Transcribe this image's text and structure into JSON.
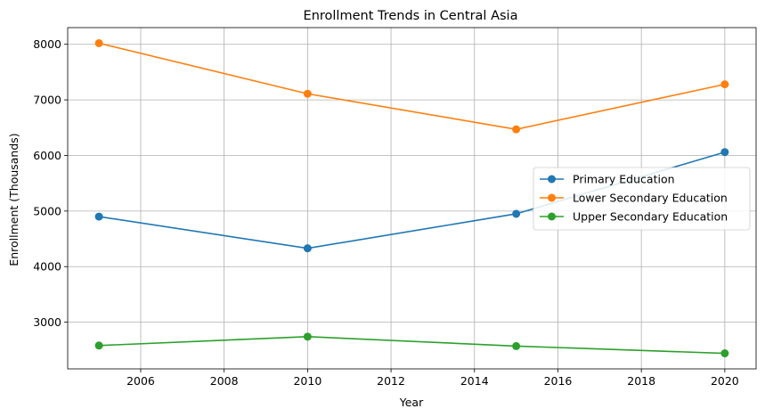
{
  "chart_data": {
    "type": "line",
    "title": "Enrollment Trends in Central Asia",
    "xlabel": "Year",
    "ylabel": "Enrollment (Thousands)",
    "x": [
      2005,
      2010,
      2015,
      2020
    ],
    "xlim": [
      2004.25,
      2020.75
    ],
    "ylim": [
      2160,
      8300
    ],
    "xticks": [
      2006,
      2008,
      2010,
      2012,
      2014,
      2016,
      2018,
      2020
    ],
    "yticks": [
      3000,
      4000,
      5000,
      6000,
      7000,
      8000
    ],
    "grid": true,
    "legend_position": "center-right",
    "series": [
      {
        "name": "Primary Education",
        "color": "#1f77b4",
        "values": [
          4900,
          4330,
          4950,
          6060
        ]
      },
      {
        "name": "Lower Secondary Education",
        "color": "#ff7f0e",
        "values": [
          8020,
          7110,
          6470,
          7280
        ]
      },
      {
        "name": "Upper Secondary Education",
        "color": "#2ca02c",
        "values": [
          2580,
          2740,
          2570,
          2440
        ]
      }
    ]
  }
}
